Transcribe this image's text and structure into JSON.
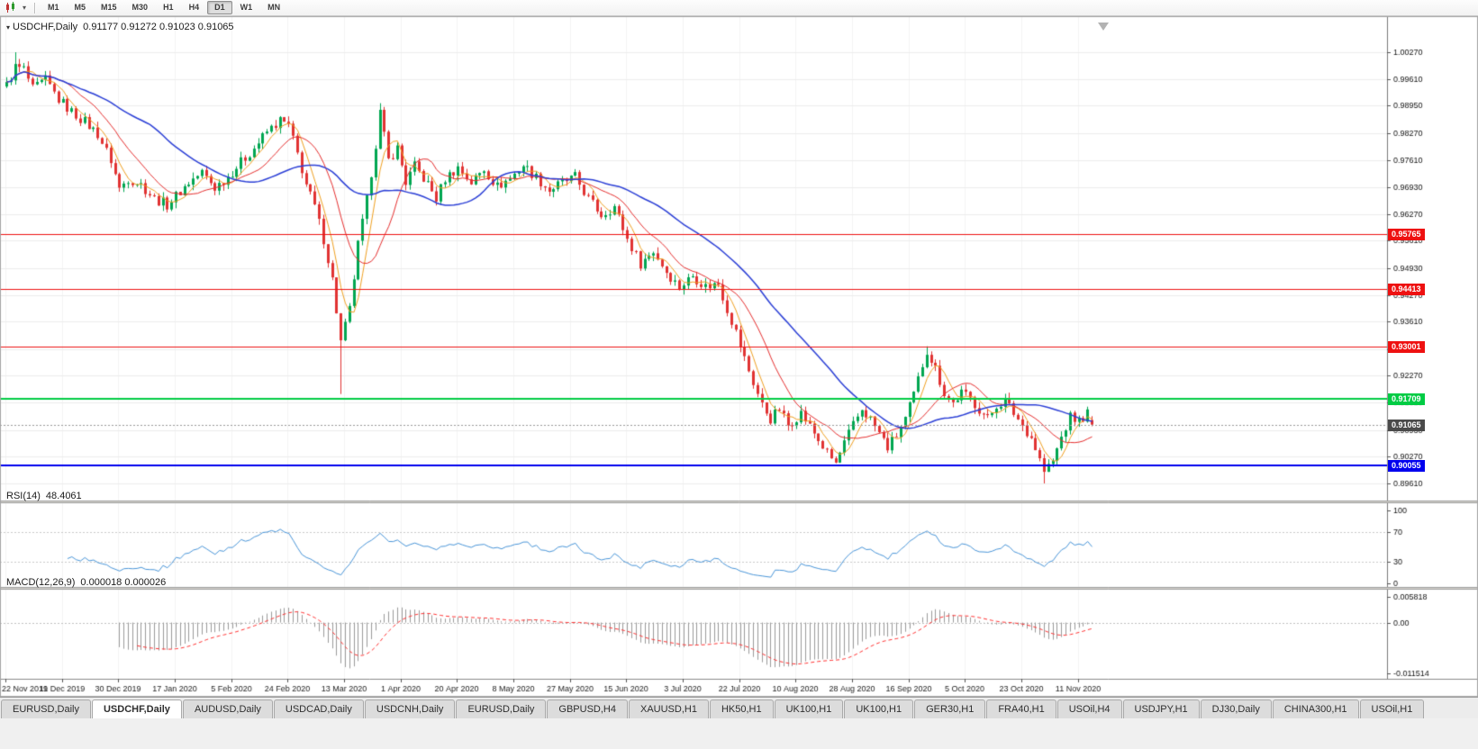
{
  "toolbar": {
    "timeframes": [
      "M1",
      "M5",
      "M15",
      "M30",
      "H1",
      "H4",
      "D1",
      "W1",
      "MN"
    ],
    "active_timeframe": "D1"
  },
  "tabbar": {
    "active_index": 1,
    "tabs": [
      "EURUSD,Daily",
      "USDCHF,Daily",
      "AUDUSD,Daily",
      "USDCAD,Daily",
      "USDCNH,Daily",
      "EURUSD,Daily",
      "GBPUSD,H4",
      "XAUUSD,H1",
      "HK50,H1",
      "UK100,H1",
      "UK100,H1",
      "GER30,H1",
      "FRA40,H1",
      "USOil,H4",
      "USDJPY,H1",
      "DJ30,Daily",
      "CHINA300,H1",
      "USOil,H1"
    ]
  },
  "chart_data": {
    "type": "candlestick",
    "title": "USDCHF,Daily",
    "ohlc_display": {
      "open": "0.91177",
      "high": "0.91272",
      "low": "0.91023",
      "close": "0.91065",
      "text": "0.91177 0.91272 0.91023 0.91065"
    },
    "symbol_marker": "▾",
    "price_axis_top_value": 1.0027,
    "price_axis_bottom_value": 0.8961,
    "price_axis_ticks": [
      "1.00270",
      "0.99610",
      "0.98950",
      "0.98270",
      "0.97610",
      "0.96930",
      "0.96270",
      "0.95610",
      "0.94930",
      "0.94270",
      "0.93610",
      "0.92930",
      "0.92270",
      "0.91610",
      "0.90930",
      "0.90270",
      "0.89610"
    ],
    "date_labels": [
      "22 Nov 2019",
      "11 Dec 2019",
      "30 Dec 2019",
      "17 Jan 2020",
      "5 Feb 2020",
      "24 Feb 2020",
      "13 Mar 2020",
      "1 Apr 2020",
      "20 Apr 2020",
      "8 May 2020",
      "27 May 2020",
      "15 Jun 2020",
      "3 Jul 2020",
      "22 Jul 2020",
      "10 Aug 2020",
      "28 Aug 2020",
      "16 Sep 2020",
      "5 Oct 2020",
      "23 Oct 2020",
      "11 Nov 2020"
    ],
    "label_interval_bars": 13,
    "up_color": "#00a651",
    "down_color": "#e13232",
    "grid_color": "#ededed",
    "levels": [
      {
        "price": 0.95765,
        "label": "0.95765",
        "color": "#ee1111",
        "line_width": 1
      },
      {
        "price": 0.94413,
        "label": "0.94413",
        "color": "#ee1111",
        "line_width": 1
      },
      {
        "price": 0.93001,
        "label": "0.93001",
        "color": "#ee1111",
        "line_width": 1
      },
      {
        "price": 0.91709,
        "label": "0.91709",
        "color": "#00cc44",
        "line_width": 2
      },
      {
        "price": 0.90055,
        "label": "0.90055",
        "color": "#0000ee",
        "line_width": 2
      }
    ],
    "current_price": {
      "price": 0.91065,
      "label": "0.91065",
      "color": "#4a4a4a"
    },
    "moving_averages": [
      {
        "period": 5,
        "color": "#f0a020",
        "name": "ma-fast"
      },
      {
        "period": 13,
        "color": "#e62e2e",
        "name": "ma-mid"
      },
      {
        "period": 34,
        "color": "#2b3fd6",
        "name": "ma-slow"
      }
    ],
    "candles": {
      "count": 251,
      "noise_amplitude": 0.0013,
      "wick_amplitude": 0.0015,
      "close_waypoints": [
        [
          0,
          0.9945
        ],
        [
          2,
          0.999
        ],
        [
          4,
          0.9985
        ],
        [
          6,
          0.9935
        ],
        [
          9,
          0.9958
        ],
        [
          12,
          0.991
        ],
        [
          15,
          0.988
        ],
        [
          18,
          0.9855
        ],
        [
          21,
          0.9825
        ],
        [
          24,
          0.976
        ],
        [
          26,
          0.969
        ],
        [
          28,
          0.9715
        ],
        [
          31,
          0.97
        ],
        [
          34,
          0.9665
        ],
        [
          37,
          0.965
        ],
        [
          39,
          0.9672
        ],
        [
          42,
          0.9705
        ],
        [
          45,
          0.973
        ],
        [
          48,
          0.9692
        ],
        [
          51,
          0.972
        ],
        [
          54,
          0.9755
        ],
        [
          57,
          0.979
        ],
        [
          60,
          0.983
        ],
        [
          63,
          0.9858
        ],
        [
          65,
          0.9845
        ],
        [
          67,
          0.9775
        ],
        [
          69,
          0.97
        ],
        [
          71,
          0.9645
        ],
        [
          73,
          0.9565
        ],
        [
          75,
          0.9465
        ],
        [
          77,
          0.931
        ],
        [
          79,
          0.939
        ],
        [
          81,
          0.955
        ],
        [
          83,
          0.966
        ],
        [
          85,
          0.98
        ],
        [
          86,
          0.9878
        ],
        [
          88,
          0.976
        ],
        [
          90,
          0.979
        ],
        [
          92,
          0.9705
        ],
        [
          94,
          0.9745
        ],
        [
          97,
          0.97
        ],
        [
          99,
          0.9665
        ],
        [
          101,
          0.9715
        ],
        [
          104,
          0.9742
        ],
        [
          107,
          0.9705
        ],
        [
          110,
          0.9738
        ],
        [
          113,
          0.9695
        ],
        [
          116,
          0.9715
        ],
        [
          119,
          0.9748
        ],
        [
          122,
          0.9718
        ],
        [
          125,
          0.9685
        ],
        [
          128,
          0.9705
        ],
        [
          131,
          0.9718
        ],
        [
          134,
          0.9665
        ],
        [
          137,
          0.9625
        ],
        [
          140,
          0.9645
        ],
        [
          143,
          0.9565
        ],
        [
          146,
          0.9505
        ],
        [
          149,
          0.9535
        ],
        [
          152,
          0.9485
        ],
        [
          155,
          0.9445
        ],
        [
          158,
          0.9475
        ],
        [
          161,
          0.9448
        ],
        [
          164,
          0.9455
        ],
        [
          166,
          0.9392
        ],
        [
          168,
          0.9335
        ],
        [
          170,
          0.927
        ],
        [
          172,
          0.921
        ],
        [
          174,
          0.9155
        ],
        [
          176,
          0.912
        ],
        [
          178,
          0.9145
        ],
        [
          180,
          0.9105
        ],
        [
          183,
          0.9135
        ],
        [
          186,
          0.9085
        ],
        [
          189,
          0.9035
        ],
        [
          191,
          0.901
        ],
        [
          193,
          0.906
        ],
        [
          195,
          0.9105
        ],
        [
          197,
          0.9145
        ],
        [
          199,
          0.912
        ],
        [
          201,
          0.9085
        ],
        [
          203,
          0.905
        ],
        [
          205,
          0.908
        ],
        [
          207,
          0.912
        ],
        [
          209,
          0.918
        ],
        [
          211,
          0.9255
        ],
        [
          212,
          0.929
        ],
        [
          214,
          0.9245
        ],
        [
          216,
          0.9185
        ],
        [
          218,
          0.916
        ],
        [
          220,
          0.9185
        ],
        [
          222,
          0.917
        ],
        [
          224,
          0.9145
        ],
        [
          226,
          0.912
        ],
        [
          228,
          0.9155
        ],
        [
          230,
          0.9165
        ],
        [
          232,
          0.9135
        ],
        [
          234,
          0.9105
        ],
        [
          236,
          0.9075
        ],
        [
          238,
          0.902
        ],
        [
          239,
          0.899
        ],
        [
          241,
          0.9015
        ],
        [
          243,
          0.9075
        ],
        [
          245,
          0.9125
        ],
        [
          247,
          0.9115
        ],
        [
          249,
          0.9135
        ],
        [
          250,
          0.91065
        ]
      ],
      "special_wicks": [
        {
          "i": 2,
          "high": 1.0027
        },
        {
          "i": 77,
          "low": 0.9182
        },
        {
          "i": 86,
          "high": 0.9901
        },
        {
          "i": 212,
          "high": 0.93
        },
        {
          "i": 239,
          "low": 0.8961
        }
      ],
      "last_candle": {
        "o": 0.91177,
        "h": 0.91272,
        "l": 0.91023,
        "c": 0.91065
      }
    },
    "rsi": {
      "period_label": "RSI(14)",
      "value_label": "48.4061",
      "axis_labels": [
        "100",
        "70",
        "30",
        "0"
      ],
      "guide_levels": [
        70,
        30
      ],
      "color": "#4a96d9",
      "range": [
        0,
        100
      ]
    },
    "macd": {
      "label": "MACD(12,26,9)",
      "value_labels": "0.000018 0.000026",
      "axis_top_label": "0.005818",
      "axis_zero_label": "0.00",
      "axis_bottom_label": "-0.011514",
      "range": [
        -0.011514,
        0.005818
      ],
      "hist_color": "#9a9a9a",
      "signal_color": "#ff3333"
    }
  }
}
